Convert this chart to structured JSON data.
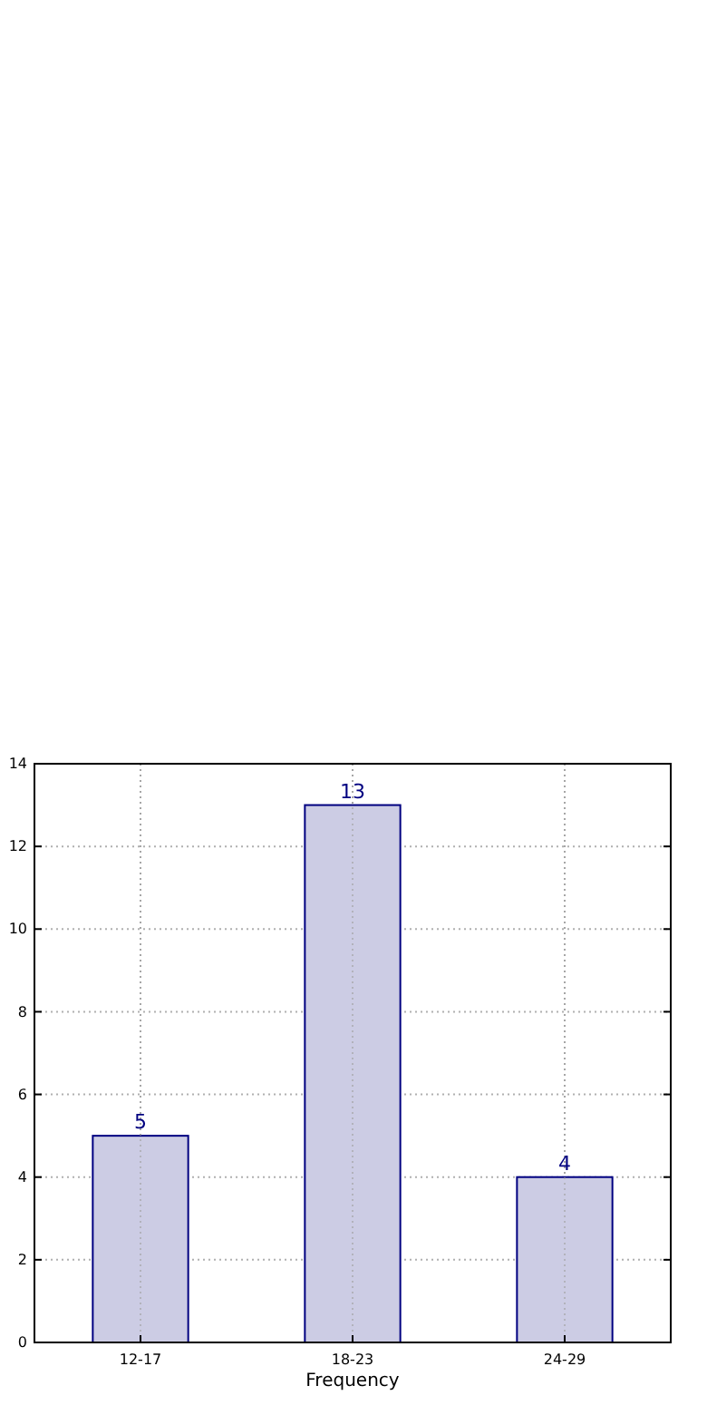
{
  "chart_data": {
    "type": "bar",
    "xlabel": "Frequency",
    "categories": [
      "12-17",
      "18-23",
      "24-29"
    ],
    "series": [
      {
        "color": "#cccce4",
        "values": [
          5,
          13,
          4
        ]
      }
    ],
    "ylim": [
      0,
      14
    ],
    "yticks": [
      0,
      2,
      4,
      6,
      8,
      10,
      12,
      14
    ],
    "grid": true,
    "data_labels": true
  }
}
